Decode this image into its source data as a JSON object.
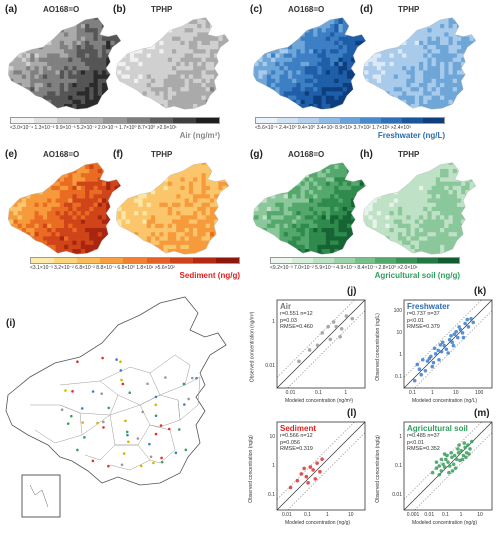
{
  "maps": [
    {
      "label": "(a)",
      "title": "AO168=O",
      "scheme": "gray"
    },
    {
      "label": "(b)",
      "title": "TPHP",
      "scheme": "gray"
    },
    {
      "label": "(c)",
      "title": "AO168=O",
      "scheme": "blue"
    },
    {
      "label": "(d)",
      "title": "TPHP",
      "scheme": "blue"
    },
    {
      "label": "(e)",
      "title": "AO168=O",
      "scheme": "orange"
    },
    {
      "label": "(f)",
      "title": "TPHP",
      "scheme": "orange"
    },
    {
      "label": "(g)",
      "title": "AO168=O",
      "scheme": "green"
    },
    {
      "label": "(h)",
      "title": "TPHP",
      "scheme": "green"
    }
  ],
  "colorbars": [
    {
      "title": "Air (ng/m³)",
      "title_color": "#888888",
      "ticks": "<3.0×10⁻⁴ 1.3×10⁻³ 9.9×10⁻³ 5.2×10⁻² 2.0×10⁻¹ 1.7×10⁰ 8.7×10⁰ >2.9×10¹",
      "colors": [
        "#f4f4f4",
        "#e0e0e0",
        "#c8c8c8",
        "#b0b0b0",
        "#969696",
        "#7c7c7c",
        "#5e5e5e",
        "#3e3e3e",
        "#1e1e1e"
      ]
    },
    {
      "title": "Freshwater (ng/L)",
      "title_color": "#2b6cb0",
      "ticks": "<5.6×10⁻¹ 2.4×10⁰ 9.4×10⁰ 3.4×10¹ 8.9×10¹ 3.7×10² 1.7×10³ >2.4×10³",
      "colors": [
        "#eaf2fb",
        "#d0e2f4",
        "#b3d0ee",
        "#8fbbe5",
        "#6aa3da",
        "#4a89cb",
        "#2f6fb6",
        "#1b559c",
        "#0e3e7e"
      ]
    },
    {
      "title": "Sediment (ng/g)",
      "title_color": "#e02020",
      "ticks": "<3.1×10⁻³ 3.2×10⁻² 6.8×10⁻² 8.8×10⁻¹ 6.8×10⁰ 1.8×10¹ >5.6×10²",
      "colors": [
        "#fde9a9",
        "#fcd67c",
        "#fbbd5a",
        "#f8a040",
        "#f18030",
        "#e46024",
        "#cf431a",
        "#b32a12",
        "#8e160b"
      ]
    },
    {
      "title": "Agricultural soil (ng/g)",
      "title_color": "#2f9e5a",
      "ticks": "<9.2×10⁻³ 7.0×10⁻² 5.9×10⁻¹ 4.9×10⁻¹ 8.4×10⁻¹ 2.8×10⁰ >2.0×10¹",
      "colors": [
        "#eef7ef",
        "#d6eedb",
        "#bce2c4",
        "#9cd3a8",
        "#78c08a",
        "#54a86c",
        "#3a9056",
        "#247742",
        "#135c30"
      ]
    }
  ],
  "map_i": {
    "label": "(i)"
  },
  "scatters": [
    {
      "label": "(j)",
      "name": "Air",
      "name_color": "#777777",
      "stats": [
        "r=0.551 n=12",
        "p=0.03",
        "RMSE=0.460"
      ],
      "xlabel": "Modeled concentration (ng/m³)",
      "ylabel": "Observed concentration (ng/m³)",
      "xticks": [
        "0.01",
        "0.1",
        "1"
      ],
      "yticks": [
        "1",
        "0.01"
      ],
      "point_color": "#999999",
      "points": [
        [
          0.02,
          0.03
        ],
        [
          0.05,
          0.08
        ],
        [
          0.1,
          0.12
        ],
        [
          0.3,
          0.2
        ],
        [
          0.5,
          0.6
        ],
        [
          0.8,
          0.5
        ],
        [
          1.2,
          1.5
        ],
        [
          0.4,
          0.9
        ],
        [
          0.15,
          0.35
        ],
        [
          0.7,
          0.25
        ],
        [
          2,
          1.2
        ],
        [
          0.25,
          0.6
        ]
      ],
      "range": [
        0.003,
        6
      ]
    },
    {
      "label": "(k)",
      "name": "Freshwater",
      "name_color": "#2b6cb0",
      "stats": [
        "r=0.737 n=37",
        "p<0.01",
        "RMSE=0.379"
      ],
      "xlabel": "Modeled concentration (ng/L)",
      "ylabel": "Observed concentration (ng/L)",
      "xticks": [
        "0.1",
        "1",
        "10",
        "100"
      ],
      "yticks": [
        "100",
        "10",
        "1",
        "0.1"
      ],
      "point_color": "#3d7fc9",
      "points": [
        [
          0.2,
          0.15
        ],
        [
          0.3,
          0.4
        ],
        [
          0.5,
          0.35
        ],
        [
          0.6,
          0.8
        ],
        [
          0.8,
          1.2
        ],
        [
          1,
          0.7
        ],
        [
          1.2,
          1.5
        ],
        [
          1.5,
          2
        ],
        [
          2,
          1.8
        ],
        [
          2.5,
          3
        ],
        [
          3,
          2.2
        ],
        [
          4,
          5
        ],
        [
          5,
          4
        ],
        [
          6,
          8
        ],
        [
          8,
          6
        ],
        [
          10,
          12
        ],
        [
          12,
          9
        ],
        [
          15,
          20
        ],
        [
          20,
          15
        ],
        [
          0.4,
          0.9
        ],
        [
          0.9,
          0.5
        ],
        [
          1.8,
          3.2
        ],
        [
          3.5,
          1.6
        ],
        [
          7,
          10
        ],
        [
          2.2,
          4
        ],
        [
          0.7,
          1
        ],
        [
          1.1,
          2.4
        ],
        [
          5.5,
          3
        ],
        [
          9,
          15
        ],
        [
          25,
          30
        ],
        [
          30,
          22
        ],
        [
          0.25,
          0.6
        ],
        [
          4.5,
          7
        ],
        [
          13,
          6
        ],
        [
          1.6,
          0.9
        ],
        [
          0.35,
          0.25
        ],
        [
          18,
          28
        ]
      ],
      "range": [
        0.08,
        150
      ]
    },
    {
      "label": "(l)",
      "name": "Sediment",
      "name_color": "#e02020",
      "stats": [
        "r=0.566 n=12",
        "p=0.056",
        "RMSE=0.319"
      ],
      "xlabel": "Modeled concentration (ng/g)",
      "ylabel": "Observed concentration (ng/g)",
      "xticks": [
        "0.01",
        "0.1",
        "1",
        "10"
      ],
      "yticks": [
        "10",
        "1",
        "0.1"
      ],
      "point_color": "#e03030",
      "points": [
        [
          0.02,
          0.05
        ],
        [
          0.04,
          0.1
        ],
        [
          0.06,
          0.2
        ],
        [
          0.1,
          0.15
        ],
        [
          0.15,
          0.4
        ],
        [
          0.2,
          0.3
        ],
        [
          0.3,
          0.6
        ],
        [
          0.25,
          0.12
        ],
        [
          0.08,
          0.35
        ],
        [
          0.5,
          0.9
        ],
        [
          0.12,
          0.08
        ],
        [
          0.4,
          0.25
        ]
      ],
      "range": [
        0.005,
        40
      ]
    },
    {
      "label": "(m)",
      "name": "Agricultural soil",
      "name_color": "#2f9e5a",
      "stats": [
        "r=0.485 n=37",
        "p<0.01",
        "RMSE=0.352"
      ],
      "xlabel": "Modeled concentration (ng/g)",
      "ylabel": "Observed concentration (ng/g)",
      "xticks": [
        "0.001",
        "0.01",
        "0.1",
        "1",
        "10"
      ],
      "yticks": [
        "1",
        "0.1",
        "0.01"
      ],
      "point_color": "#3a9e5e",
      "points": [
        [
          0.02,
          0.05
        ],
        [
          0.03,
          0.08
        ],
        [
          0.04,
          0.1
        ],
        [
          0.05,
          0.06
        ],
        [
          0.06,
          0.12
        ],
        [
          0.07,
          0.09
        ],
        [
          0.08,
          0.2
        ],
        [
          0.1,
          0.15
        ],
        [
          0.12,
          0.1
        ],
        [
          0.15,
          0.25
        ],
        [
          0.18,
          0.12
        ],
        [
          0.2,
          0.3
        ],
        [
          0.25,
          0.2
        ],
        [
          0.3,
          0.4
        ],
        [
          0.35,
          0.18
        ],
        [
          0.4,
          0.5
        ],
        [
          0.5,
          0.3
        ],
        [
          0.6,
          0.7
        ],
        [
          0.7,
          0.4
        ],
        [
          0.8,
          0.9
        ],
        [
          1,
          0.6
        ],
        [
          0.03,
          0.15
        ],
        [
          0.05,
          0.2
        ],
        [
          0.09,
          0.3
        ],
        [
          0.11,
          0.05
        ],
        [
          0.14,
          0.4
        ],
        [
          0.22,
          0.08
        ],
        [
          0.28,
          0.6
        ],
        [
          0.45,
          0.2
        ],
        [
          0.55,
          1.1
        ],
        [
          0.65,
          0.25
        ],
        [
          0.04,
          0.04
        ],
        [
          0.16,
          0.06
        ],
        [
          0.32,
          0.9
        ],
        [
          0.9,
          0.35
        ],
        [
          1.2,
          1.3
        ],
        [
          0.07,
          0.35
        ]
      ],
      "range": [
        0.001,
        10
      ]
    }
  ]
}
